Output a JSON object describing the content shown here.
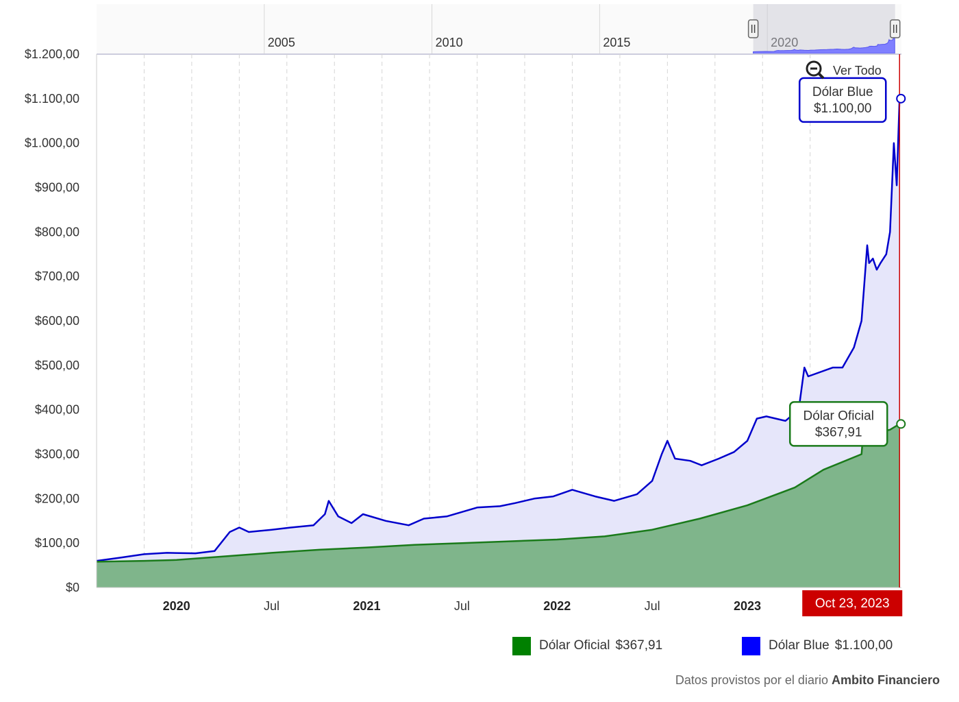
{
  "chart_data": {
    "type": "area",
    "title": "",
    "xlabel": "",
    "ylabel": "",
    "ylim": [
      0,
      1200
    ],
    "x_range": [
      2019.58,
      2023.81
    ],
    "y_ticks": [
      "$1.200,00",
      "$1.100,00",
      "$1.000,00",
      "$900,00",
      "$800,00",
      "$700,00",
      "$600,00",
      "$500,00",
      "$400,00",
      "$300,00",
      "$200,00",
      "$100,00",
      "$0"
    ],
    "y_tick_values": [
      1200,
      1100,
      1000,
      900,
      800,
      700,
      600,
      500,
      400,
      300,
      200,
      100,
      0
    ],
    "x_ticks": [
      {
        "label": "2020",
        "t": 2020.0,
        "bold": true
      },
      {
        "label": "Jul",
        "t": 2020.5,
        "bold": false
      },
      {
        "label": "2021",
        "t": 2021.0,
        "bold": true
      },
      {
        "label": "Jul",
        "t": 2021.5,
        "bold": false
      },
      {
        "label": "2022",
        "t": 2022.0,
        "bold": true
      },
      {
        "label": "Jul",
        "t": 2022.5,
        "bold": false
      },
      {
        "label": "2023",
        "t": 2023.0,
        "bold": true
      }
    ],
    "grid_x": [
      2019.83,
      2020.08,
      2020.33,
      2020.58,
      2020.83,
      2021.08,
      2021.33,
      2021.58,
      2021.83,
      2022.08,
      2022.33,
      2022.58,
      2022.83,
      2023.08,
      2023.33
    ],
    "series": [
      {
        "name": "Dólar Blue",
        "color": "#0000cc",
        "fill": "#e6e6fa",
        "points": [
          [
            2019.58,
            60
          ],
          [
            2019.7,
            67
          ],
          [
            2019.83,
            75
          ],
          [
            2019.95,
            78
          ],
          [
            2020.1,
            77
          ],
          [
            2020.2,
            82
          ],
          [
            2020.28,
            125
          ],
          [
            2020.33,
            135
          ],
          [
            2020.38,
            125
          ],
          [
            2020.5,
            130
          ],
          [
            2020.6,
            135
          ],
          [
            2020.72,
            140
          ],
          [
            2020.78,
            165
          ],
          [
            2020.8,
            195
          ],
          [
            2020.85,
            160
          ],
          [
            2020.92,
            145
          ],
          [
            2020.98,
            165
          ],
          [
            2021.1,
            150
          ],
          [
            2021.22,
            140
          ],
          [
            2021.3,
            155
          ],
          [
            2021.42,
            160
          ],
          [
            2021.58,
            180
          ],
          [
            2021.7,
            183
          ],
          [
            2021.78,
            190
          ],
          [
            2021.88,
            200
          ],
          [
            2021.98,
            205
          ],
          [
            2022.08,
            220
          ],
          [
            2022.2,
            205
          ],
          [
            2022.3,
            195
          ],
          [
            2022.42,
            210
          ],
          [
            2022.5,
            240
          ],
          [
            2022.55,
            300
          ],
          [
            2022.58,
            330
          ],
          [
            2022.62,
            290
          ],
          [
            2022.7,
            285
          ],
          [
            2022.76,
            275
          ],
          [
            2022.85,
            290
          ],
          [
            2022.93,
            305
          ],
          [
            2023.0,
            330
          ],
          [
            2023.05,
            380
          ],
          [
            2023.1,
            385
          ],
          [
            2023.2,
            375
          ],
          [
            2023.27,
            400
          ],
          [
            2023.3,
            495
          ],
          [
            2023.32,
            475
          ],
          [
            2023.45,
            495
          ],
          [
            2023.5,
            495
          ],
          [
            2023.56,
            540
          ],
          [
            2023.6,
            600
          ],
          [
            2023.63,
            770
          ],
          [
            2023.64,
            730
          ],
          [
            2023.66,
            740
          ],
          [
            2023.68,
            715
          ],
          [
            2023.7,
            730
          ],
          [
            2023.73,
            750
          ],
          [
            2023.75,
            800
          ],
          [
            2023.77,
            1000
          ],
          [
            2023.785,
            905
          ],
          [
            2023.8,
            1100
          ]
        ]
      },
      {
        "name": "Dólar Oficial",
        "color": "#1a7a1a",
        "fill": "#7fb58b",
        "points": [
          [
            2019.58,
            58
          ],
          [
            2019.83,
            60
          ],
          [
            2020.0,
            62
          ],
          [
            2020.25,
            70
          ],
          [
            2020.5,
            78
          ],
          [
            2020.75,
            85
          ],
          [
            2021.0,
            90
          ],
          [
            2021.25,
            96
          ],
          [
            2021.5,
            100
          ],
          [
            2021.75,
            104
          ],
          [
            2022.0,
            108
          ],
          [
            2022.25,
            115
          ],
          [
            2022.5,
            130
          ],
          [
            2022.75,
            155
          ],
          [
            2023.0,
            185
          ],
          [
            2023.25,
            225
          ],
          [
            2023.4,
            265
          ],
          [
            2023.6,
            300
          ],
          [
            2023.61,
            350
          ],
          [
            2023.7,
            350
          ],
          [
            2023.75,
            355
          ],
          [
            2023.8,
            368
          ]
        ]
      }
    ],
    "crosshair": {
      "t": 2023.8,
      "label": "Oct 23, 2023",
      "color": "#cc0000"
    },
    "tooltips": [
      {
        "series": "Dólar Blue",
        "name": "Dólar Blue",
        "value": "$1.100,00",
        "y": 1100,
        "color": "#0000cc"
      },
      {
        "series": "Dólar Oficial",
        "name": "Dólar Oficial",
        "value": "$367,91",
        "y": 368,
        "color": "#1a7a1a"
      }
    ],
    "navigator": {
      "labels": [
        "2005",
        "2010",
        "2015",
        "2020"
      ],
      "label_years": [
        2005,
        2010,
        2015,
        2020
      ],
      "range_years": [
        2000,
        2024
      ],
      "selected_years": [
        2019.58,
        2023.81
      ]
    },
    "legend": [
      {
        "name": "Dólar Oficial",
        "value": "$367,91",
        "color": "#008000"
      },
      {
        "name": "Dólar Blue",
        "value": "$1.100,00",
        "color": "#0000ff"
      }
    ]
  },
  "zoom": {
    "label": "Ver Todo"
  },
  "source": {
    "prefix": "Datos provistos por el diario",
    "name": "Ambito Financiero"
  }
}
